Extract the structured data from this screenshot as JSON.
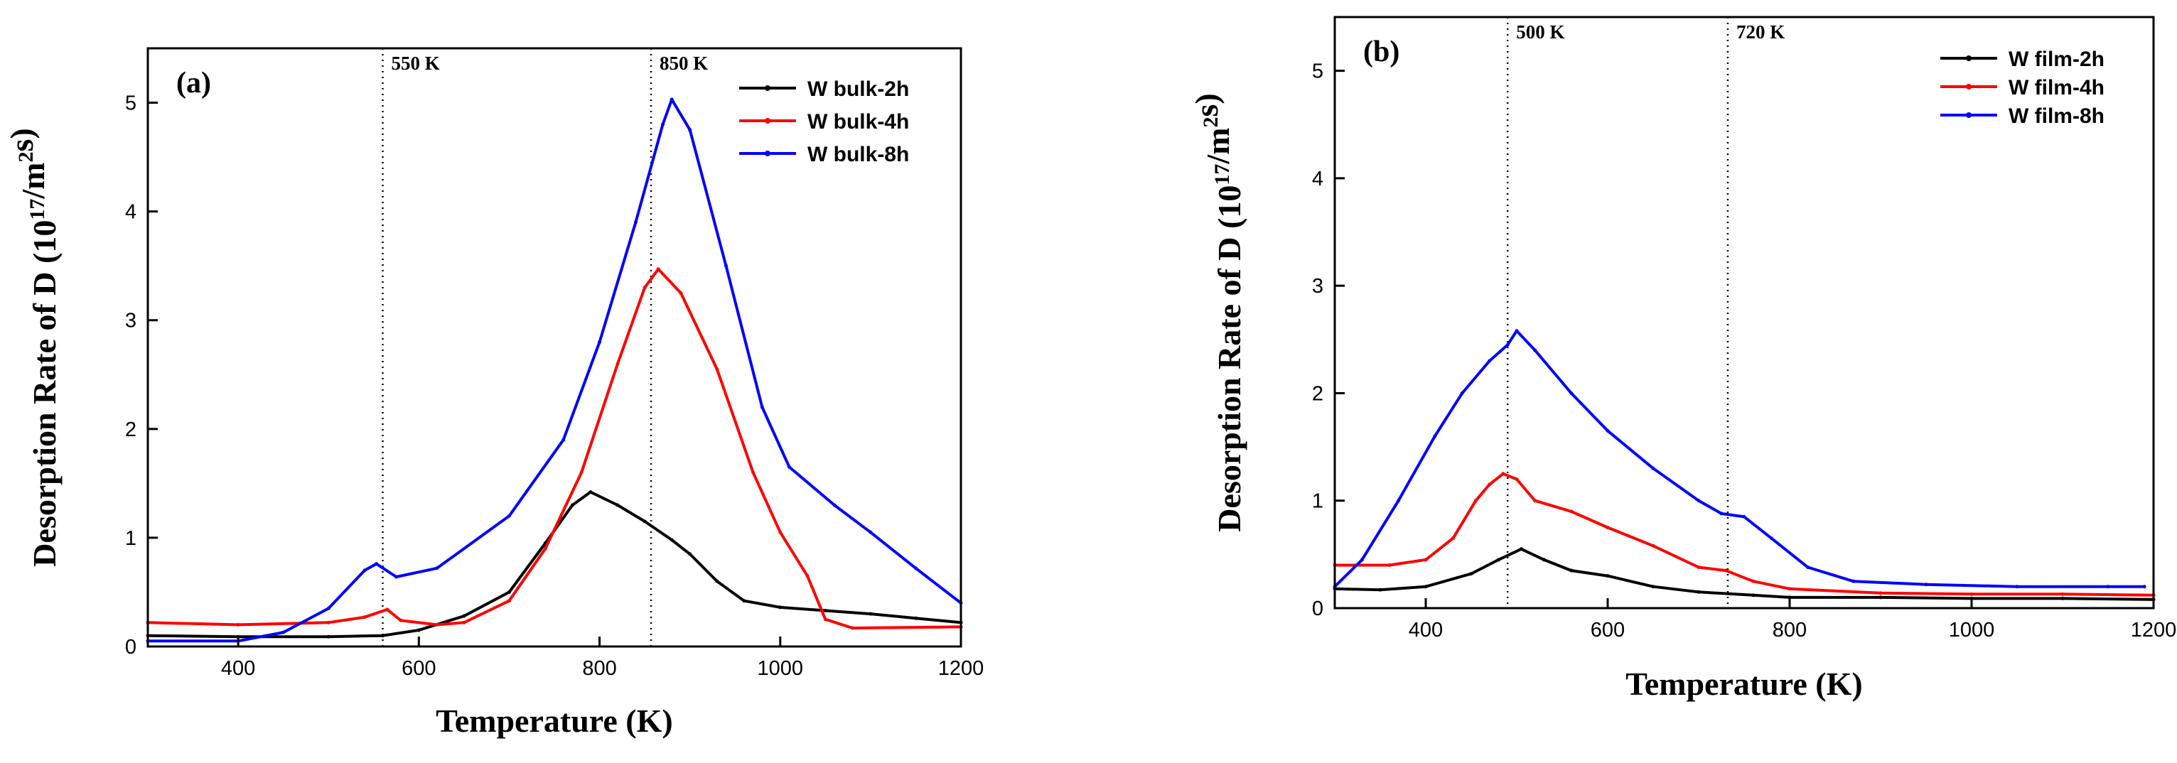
{
  "chart_data": [
    {
      "type": "line",
      "panel_label": "(a)",
      "xlabel": "Temperature (K)",
      "ylabel": "Desorption Rate of D (10",
      "ylabel_exp": "17",
      "ylabel_units": "/m",
      "ylabel_sq": "2",
      "ylabel_end": "s)",
      "xlim": [
        300,
        1200
      ],
      "ylim": [
        0,
        5.5
      ],
      "xticks": [
        400,
        600,
        800,
        1000,
        1200
      ],
      "yticks": [
        0,
        1,
        2,
        3,
        4,
        5
      ],
      "reference_lines": [
        {
          "x": 560,
          "label": "550 K"
        },
        {
          "x": 857,
          "label": "850 K"
        }
      ],
      "legend_position": "top-right",
      "series": [
        {
          "name": "W bulk-2h",
          "color": "#000000",
          "points": [
            [
              300,
              0.1
            ],
            [
              400,
              0.09
            ],
            [
              500,
              0.09
            ],
            [
              560,
              0.1
            ],
            [
              600,
              0.15
            ],
            [
              650,
              0.28
            ],
            [
              700,
              0.5
            ],
            [
              740,
              0.95
            ],
            [
              770,
              1.3
            ],
            [
              790,
              1.42
            ],
            [
              820,
              1.3
            ],
            [
              850,
              1.15
            ],
            [
              880,
              0.98
            ],
            [
              900,
              0.85
            ],
            [
              930,
              0.6
            ],
            [
              960,
              0.42
            ],
            [
              1000,
              0.36
            ],
            [
              1050,
              0.33
            ],
            [
              1100,
              0.3
            ],
            [
              1150,
              0.26
            ],
            [
              1200,
              0.22
            ]
          ]
        },
        {
          "name": "W bulk-4h",
          "color": "#ff0000",
          "points": [
            [
              300,
              0.22
            ],
            [
              400,
              0.2
            ],
            [
              500,
              0.22
            ],
            [
              540,
              0.27
            ],
            [
              565,
              0.34
            ],
            [
              580,
              0.24
            ],
            [
              620,
              0.2
            ],
            [
              650,
              0.22
            ],
            [
              700,
              0.42
            ],
            [
              740,
              0.9
            ],
            [
              780,
              1.6
            ],
            [
              820,
              2.6
            ],
            [
              850,
              3.3
            ],
            [
              865,
              3.47
            ],
            [
              890,
              3.25
            ],
            [
              930,
              2.55
            ],
            [
              970,
              1.6
            ],
            [
              1000,
              1.05
            ],
            [
              1030,
              0.65
            ],
            [
              1050,
              0.25
            ],
            [
              1080,
              0.17
            ],
            [
              1200,
              0.18
            ]
          ]
        },
        {
          "name": "W bulk-8h",
          "color": "#0000ff",
          "points": [
            [
              300,
              0.05
            ],
            [
              400,
              0.05
            ],
            [
              450,
              0.13
            ],
            [
              500,
              0.35
            ],
            [
              540,
              0.7
            ],
            [
              553,
              0.76
            ],
            [
              575,
              0.64
            ],
            [
              620,
              0.72
            ],
            [
              700,
              1.2
            ],
            [
              760,
              1.9
            ],
            [
              800,
              2.8
            ],
            [
              840,
              3.9
            ],
            [
              870,
              4.8
            ],
            [
              880,
              5.03
            ],
            [
              900,
              4.75
            ],
            [
              940,
              3.5
            ],
            [
              980,
              2.2
            ],
            [
              1010,
              1.65
            ],
            [
              1060,
              1.3
            ],
            [
              1100,
              1.05
            ],
            [
              1150,
              0.72
            ],
            [
              1200,
              0.4
            ]
          ]
        }
      ]
    },
    {
      "type": "line",
      "panel_label": "(b)",
      "xlabel": "Temperature (K)",
      "ylabel": "Desorption Rate of D (10",
      "ylabel_exp": "17",
      "ylabel_units": "/m",
      "ylabel_sq": "2",
      "ylabel_end": "s)",
      "xlim": [
        300,
        1200
      ],
      "ylim": [
        0,
        5.5
      ],
      "xticks": [
        400,
        600,
        800,
        1000,
        1200
      ],
      "yticks": [
        0,
        1,
        2,
        3,
        4,
        5
      ],
      "reference_lines": [
        {
          "x": 490,
          "label": "500 K"
        },
        {
          "x": 732,
          "label": "720 K"
        }
      ],
      "legend_position": "top-right",
      "series": [
        {
          "name": "W film-2h",
          "color": "#000000",
          "points": [
            [
              300,
              0.18
            ],
            [
              350,
              0.17
            ],
            [
              400,
              0.2
            ],
            [
              450,
              0.32
            ],
            [
              480,
              0.45
            ],
            [
              505,
              0.55
            ],
            [
              530,
              0.45
            ],
            [
              560,
              0.35
            ],
            [
              600,
              0.3
            ],
            [
              650,
              0.2
            ],
            [
              700,
              0.15
            ],
            [
              760,
              0.12
            ],
            [
              800,
              0.1
            ],
            [
              900,
              0.1
            ],
            [
              1000,
              0.09
            ],
            [
              1100,
              0.09
            ],
            [
              1200,
              0.08
            ]
          ]
        },
        {
          "name": "W film-4h",
          "color": "#ff0000",
          "points": [
            [
              300,
              0.4
            ],
            [
              360,
              0.4
            ],
            [
              400,
              0.45
            ],
            [
              430,
              0.65
            ],
            [
              455,
              1.0
            ],
            [
              470,
              1.15
            ],
            [
              485,
              1.25
            ],
            [
              500,
              1.2
            ],
            [
              520,
              1.0
            ],
            [
              560,
              0.9
            ],
            [
              600,
              0.75
            ],
            [
              650,
              0.58
            ],
            [
              700,
              0.38
            ],
            [
              730,
              0.35
            ],
            [
              760,
              0.25
            ],
            [
              800,
              0.18
            ],
            [
              900,
              0.14
            ],
            [
              1000,
              0.13
            ],
            [
              1100,
              0.13
            ],
            [
              1200,
              0.12
            ]
          ]
        },
        {
          "name": "W film-8h",
          "color": "#0000ff",
          "points": [
            [
              300,
              0.2
            ],
            [
              330,
              0.45
            ],
            [
              370,
              1.0
            ],
            [
              410,
              1.6
            ],
            [
              440,
              2.0
            ],
            [
              470,
              2.3
            ],
            [
              490,
              2.45
            ],
            [
              500,
              2.58
            ],
            [
              520,
              2.4
            ],
            [
              560,
              2.0
            ],
            [
              600,
              1.65
            ],
            [
              650,
              1.3
            ],
            [
              700,
              1.0
            ],
            [
              725,
              0.88
            ],
            [
              750,
              0.85
            ],
            [
              780,
              0.65
            ],
            [
              820,
              0.38
            ],
            [
              870,
              0.25
            ],
            [
              950,
              0.22
            ],
            [
              1050,
              0.2
            ],
            [
              1150,
              0.2
            ],
            [
              1190,
              0.2
            ]
          ]
        }
      ]
    }
  ]
}
